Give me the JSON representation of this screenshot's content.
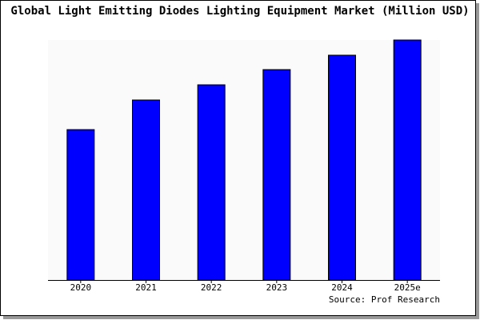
{
  "chart_data": {
    "type": "bar",
    "title": "Global Light Emitting Diodes Lighting Equipment Market (Million USD)",
    "categories": [
      "2020",
      "2021",
      "2022",
      "2023",
      "2024",
      "2025e"
    ],
    "values": [
      188,
      225,
      244,
      263,
      281,
      300
    ],
    "color": "#0000ff",
    "ylim": [
      0,
      300
    ],
    "source": "Source: Prof Research"
  }
}
